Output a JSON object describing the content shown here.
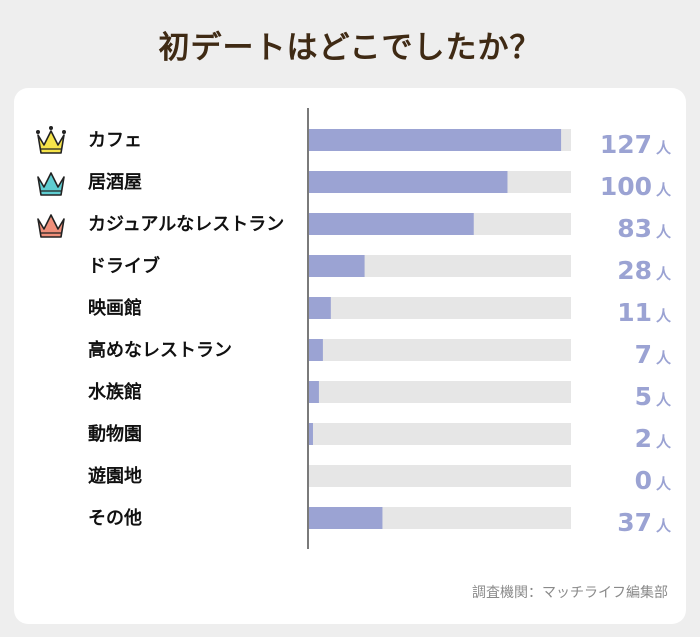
{
  "title": "初デートはどこでしたか？",
  "source": "調査機関：マッチライフ編集部",
  "colors": {
    "bar_fill": "#9ba3d3",
    "bar_track": "#e6e6e6",
    "value_text": "#9ba3d3",
    "title_text": "#3f2a14",
    "crown_gold": "#f6e44a",
    "crown_teal": "#5fcdd1",
    "crown_salmon": "#ef8f7a"
  },
  "chart_data": {
    "type": "bar",
    "orientation": "horizontal",
    "unit": "人",
    "xlim": [
      0,
      132
    ],
    "categories": [
      "カフェ",
      "居酒屋",
      "カジュアルなレストラン",
      "ドライブ",
      "映画館",
      "高めなレストラン",
      "水族館",
      "動物園",
      "遊園地",
      "その他"
    ],
    "values": [
      127,
      100,
      83,
      28,
      11,
      7,
      5,
      2,
      0,
      37
    ],
    "rank_icons": [
      "crown-gold-icon",
      "crown-teal-icon",
      "crown-salmon-icon"
    ]
  }
}
